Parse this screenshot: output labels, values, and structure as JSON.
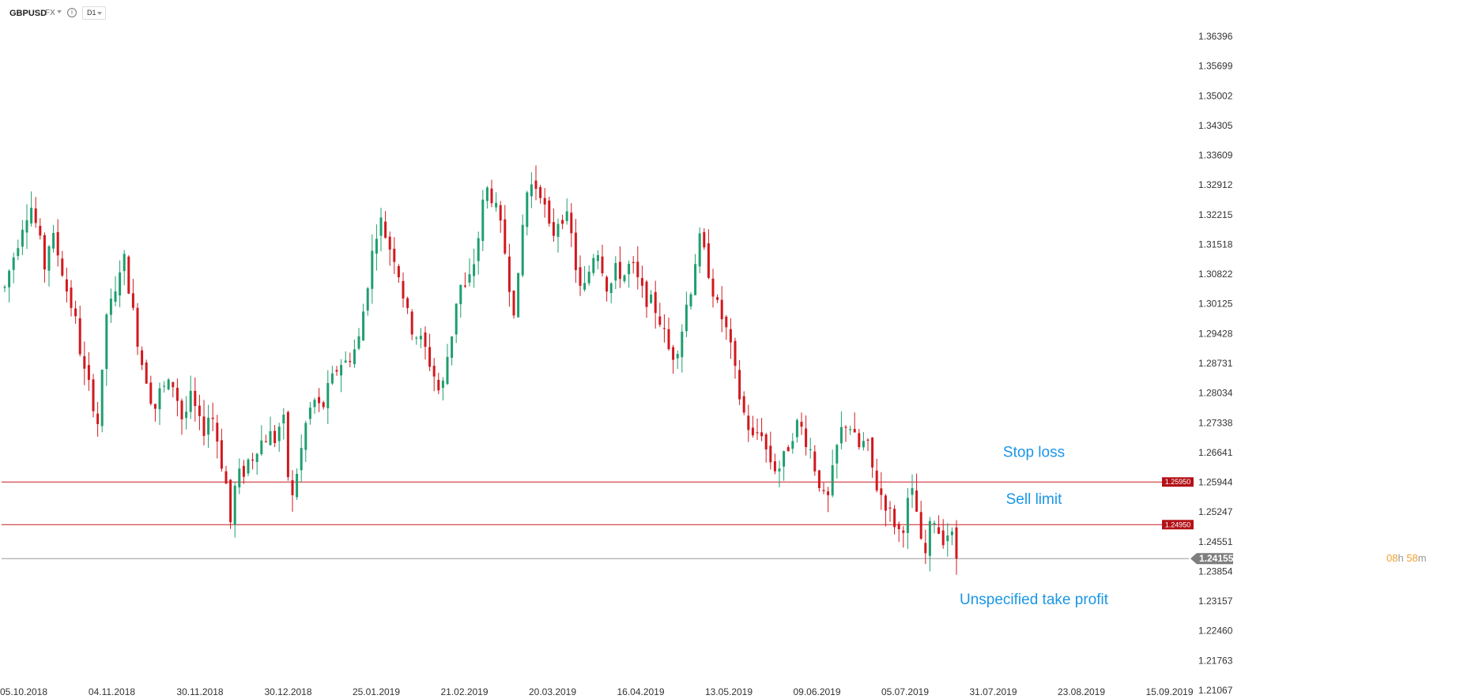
{
  "toolbar": {
    "symbol": "GBPUSD",
    "market": "FX",
    "timeframe": "D1",
    "info_icon": "info-icon",
    "market_dropdown_icon": "chevron-down-icon",
    "timeframe_dropdown_icon": "chevron-down-icon"
  },
  "colors": {
    "bull": "#1e9e6e",
    "bear": "#d0191f",
    "level_line": "#c81d24",
    "current_line": "#9a9a9a",
    "annotation": "#1a96e6",
    "timer_accent": "#f0a030"
  },
  "countdown": {
    "hours": "08",
    "h_unit": "h",
    "minutes": "58",
    "m_unit": "m"
  },
  "chart_data": {
    "type": "candlestick",
    "price_axis": {
      "range": [
        1.21067,
        1.36396
      ],
      "ticks": [
        "1.36396",
        "1.35699",
        "1.35002",
        "1.34305",
        "1.33609",
        "1.32912",
        "1.32215",
        "1.31518",
        "1.30822",
        "1.30125",
        "1.29428",
        "1.28731",
        "1.28034",
        "1.27338",
        "1.26641",
        "1.25944",
        "1.25247",
        "1.24551",
        "1.23854",
        "1.23157",
        "1.22460",
        "1.21763",
        "1.21067"
      ]
    },
    "date_axis": {
      "ticks": [
        "05.10.2018",
        "04.11.2018",
        "30.11.2018",
        "30.12.2018",
        "25.01.2019",
        "21.02.2019",
        "20.03.2019",
        "16.04.2019",
        "13.05.2019",
        "09.06.2019",
        "05.07.2019",
        "31.07.2019",
        "23.08.2019",
        "15.09.2019"
      ]
    },
    "current_price": {
      "value": 1.24155,
      "label": "1.24155"
    },
    "levels": [
      {
        "name": "Stop loss",
        "value": 1.2595,
        "label": "1.25950"
      },
      {
        "name": "Sell limit",
        "value": 1.2495,
        "label": "1.24950"
      }
    ],
    "annotations": [
      {
        "text": "Stop loss",
        "near_value": 1.2665
      },
      {
        "text": "Sell limit",
        "near_value": 1.2555
      },
      {
        "text": "Unspecified take profit",
        "near_value": 1.232
      }
    ],
    "close_path": [
      [
        0,
        1.305
      ],
      [
        6,
        1.311
      ],
      [
        10,
        1.314
      ],
      [
        18,
        1.322
      ],
      [
        24,
        1.324
      ],
      [
        30,
        1.318
      ],
      [
        36,
        1.31
      ],
      [
        42,
        1.318
      ],
      [
        48,
        1.313
      ],
      [
        54,
        1.307
      ],
      [
        58,
        1.302
      ],
      [
        62,
        1.3
      ],
      [
        66,
        1.294
      ],
      [
        70,
        1.287
      ],
      [
        74,
        1.283
      ],
      [
        78,
        1.281
      ],
      [
        82,
        1.275
      ],
      [
        86,
        1.272
      ],
      [
        90,
        1.296
      ],
      [
        94,
        1.302
      ],
      [
        98,
        1.3
      ],
      [
        102,
        1.306
      ],
      [
        106,
        1.314
      ],
      [
        110,
        1.309
      ],
      [
        114,
        1.302
      ],
      [
        118,
        1.296
      ],
      [
        122,
        1.29
      ],
      [
        126,
        1.285
      ],
      [
        130,
        1.283
      ],
      [
        134,
        1.276
      ],
      [
        138,
        1.278
      ],
      [
        142,
        1.283
      ],
      [
        146,
        1.28
      ],
      [
        150,
        1.284
      ],
      [
        154,
        1.281
      ],
      [
        158,
        1.277
      ],
      [
        162,
        1.272
      ],
      [
        166,
        1.28
      ],
      [
        170,
        1.278
      ],
      [
        174,
        1.275
      ],
      [
        178,
        1.271
      ],
      [
        182,
        1.273
      ],
      [
        186,
        1.277
      ],
      [
        190,
        1.272
      ],
      [
        194,
        1.267
      ],
      [
        198,
        1.261
      ],
      [
        202,
        1.257
      ],
      [
        204,
        1.25
      ],
      [
        206,
        1.254
      ],
      [
        210,
        1.262
      ],
      [
        214,
        1.26
      ],
      [
        218,
        1.264
      ],
      [
        222,
        1.265
      ],
      [
        226,
        1.266
      ],
      [
        230,
        1.27
      ],
      [
        234,
        1.268
      ],
      [
        238,
        1.272
      ],
      [
        242,
        1.269
      ],
      [
        246,
        1.27
      ],
      [
        250,
        1.275
      ],
      [
        254,
        1.272
      ],
      [
        258,
        1.25
      ],
      [
        262,
        1.261
      ],
      [
        266,
        1.263
      ],
      [
        270,
        1.271
      ],
      [
        274,
        1.275
      ],
      [
        278,
        1.278
      ],
      [
        282,
        1.279
      ],
      [
        286,
        1.275
      ],
      [
        290,
        1.28
      ],
      [
        294,
        1.282
      ],
      [
        298,
        1.285
      ],
      [
        302,
        1.287
      ],
      [
        306,
        1.288
      ],
      [
        310,
        1.287
      ],
      [
        314,
        1.291
      ],
      [
        318,
        1.29
      ],
      [
        322,
        1.296
      ],
      [
        326,
        1.303
      ],
      [
        330,
        1.31
      ],
      [
        334,
        1.316
      ],
      [
        338,
        1.321
      ],
      [
        342,
        1.32
      ],
      [
        346,
        1.315
      ],
      [
        350,
        1.314
      ],
      [
        354,
        1.311
      ],
      [
        358,
        1.306
      ],
      [
        362,
        1.301
      ],
      [
        366,
        1.296
      ],
      [
        370,
        1.295
      ],
      [
        374,
        1.293
      ],
      [
        378,
        1.292
      ],
      [
        382,
        1.289
      ],
      [
        386,
        1.286
      ],
      [
        390,
        1.283
      ],
      [
        394,
        1.279
      ],
      [
        398,
        1.286
      ],
      [
        402,
        1.292
      ],
      [
        406,
        1.297
      ],
      [
        410,
        1.307
      ],
      [
        414,
        1.304
      ],
      [
        418,
        1.305
      ],
      [
        422,
        1.309
      ],
      [
        426,
        1.313
      ],
      [
        430,
        1.321
      ],
      [
        434,
        1.328
      ],
      [
        438,
        1.328
      ],
      [
        442,
        1.325
      ],
      [
        446,
        1.321
      ],
      [
        450,
        1.317
      ],
      [
        454,
        1.31
      ],
      [
        458,
        1.302
      ],
      [
        462,
        1.299
      ],
      [
        466,
        1.314
      ],
      [
        470,
        1.325
      ],
      [
        474,
        1.33
      ],
      [
        478,
        1.328
      ],
      [
        482,
        1.33
      ],
      [
        486,
        1.326
      ],
      [
        490,
        1.321
      ],
      [
        494,
        1.316
      ],
      [
        498,
        1.32
      ],
      [
        502,
        1.322
      ],
      [
        506,
        1.322
      ],
      [
        510,
        1.32
      ],
      [
        514,
        1.314
      ],
      [
        518,
        1.306
      ],
      [
        522,
        1.303
      ],
      [
        526,
        1.307
      ],
      [
        530,
        1.311
      ],
      [
        534,
        1.315
      ],
      [
        538,
        1.313
      ],
      [
        542,
        1.307
      ],
      [
        546,
        1.304
      ],
      [
        550,
        1.308
      ],
      [
        554,
        1.31
      ],
      [
        558,
        1.307
      ],
      [
        562,
        1.309
      ],
      [
        566,
        1.311
      ],
      [
        570,
        1.308
      ],
      [
        574,
        1.305
      ],
      [
        578,
        1.303
      ],
      [
        582,
        1.302
      ],
      [
        586,
        1.301
      ],
      [
        590,
        1.299
      ],
      [
        594,
        1.296
      ],
      [
        598,
        1.292
      ],
      [
        602,
        1.289
      ],
      [
        606,
        1.29
      ],
      [
        610,
        1.293
      ],
      [
        614,
        1.298
      ],
      [
        618,
        1.304
      ],
      [
        622,
        1.306
      ],
      [
        626,
        1.317
      ],
      [
        630,
        1.315
      ],
      [
        634,
        1.311
      ],
      [
        638,
        1.307
      ],
      [
        642,
        1.302
      ],
      [
        646,
        1.299
      ],
      [
        650,
        1.297
      ],
      [
        654,
        1.293
      ],
      [
        658,
        1.288
      ],
      [
        662,
        1.282
      ],
      [
        666,
        1.277
      ],
      [
        670,
        1.274
      ],
      [
        674,
        1.271
      ],
      [
        678,
        1.268
      ],
      [
        682,
        1.274
      ],
      [
        686,
        1.269
      ],
      [
        690,
        1.265
      ],
      [
        694,
        1.264
      ],
      [
        698,
        1.262
      ],
      [
        702,
        1.264
      ],
      [
        706,
        1.266
      ],
      [
        710,
        1.27
      ],
      [
        714,
        1.272
      ],
      [
        718,
        1.274
      ],
      [
        722,
        1.27
      ],
      [
        726,
        1.269
      ],
      [
        730,
        1.265
      ],
      [
        734,
        1.261
      ],
      [
        738,
        1.258
      ],
      [
        742,
        1.253
      ],
      [
        746,
        1.258
      ],
      [
        750,
        1.265
      ],
      [
        754,
        1.27
      ],
      [
        758,
        1.273
      ],
      [
        762,
        1.274
      ],
      [
        766,
        1.271
      ],
      [
        770,
        1.268
      ],
      [
        774,
        1.267
      ],
      [
        778,
        1.27
      ],
      [
        782,
        1.265
      ],
      [
        786,
        1.26
      ],
      [
        790,
        1.257
      ],
      [
        794,
        1.256
      ],
      [
        798,
        1.253
      ],
      [
        802,
        1.251
      ],
      [
        806,
        1.249
      ],
      [
        810,
        1.247
      ],
      [
        814,
        1.252
      ],
      [
        818,
        1.257
      ],
      [
        822,
        1.256
      ],
      [
        826,
        1.249
      ],
      [
        830,
        1.24
      ],
      [
        834,
        1.245
      ],
      [
        838,
        1.252
      ],
      [
        842,
        1.25
      ],
      [
        846,
        1.246
      ],
      [
        850,
        1.247
      ],
      [
        854,
        1.248
      ],
      [
        858,
        1.245
      ],
      [
        862,
        1.2416
      ]
    ]
  }
}
